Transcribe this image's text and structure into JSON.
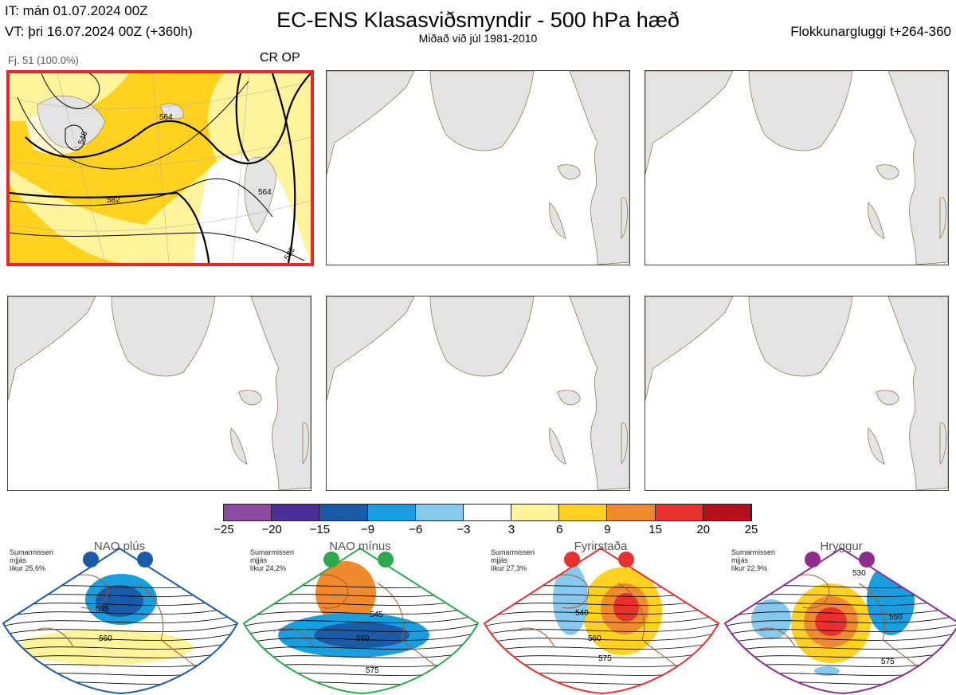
{
  "header": {
    "init_time": "IT: mán 01.07.2024 00Z",
    "valid_time": "VT: þri 16.07.2024 00Z  (+360h)",
    "title": "EC-ENS Klasasviðsmyndir - 500 hPa hæð",
    "subtitle": "Miðað við júl 1981-2010",
    "window": "Flokkunargluggi t+264-360"
  },
  "panel1": {
    "cluster": "Fj. 51 (100.0%)",
    "crop": "CR OP",
    "contour_labels": [
      "546",
      "564",
      "564",
      "582",
      "582"
    ]
  },
  "colorbar": {
    "colors": [
      "#8b4aa0",
      "#4b2e96",
      "#1a5ba8",
      "#1b9ee0",
      "#87c8ef",
      "#ffffff",
      "#fff39c",
      "#ffd21f",
      "#f08a2e",
      "#e8302d",
      "#b3111b"
    ],
    "labels": [
      "−25",
      "−20",
      "−15",
      "−9",
      "−6",
      "−3",
      "3",
      "6",
      "9",
      "15",
      "20",
      "25"
    ]
  },
  "regimes": [
    {
      "name": "NAO plús",
      "season": "Sumarmisseri",
      "spread": "mjjás",
      "prob": "líkur 25,6%",
      "color": "#1a5ba8",
      "labels": [
        "535",
        "560"
      ]
    },
    {
      "name": "NAO mínus",
      "season": "Sumarmisseri",
      "spread": "mjjás",
      "prob": "líkur 24,2%",
      "color": "#2aaa4a",
      "labels": [
        "545",
        "560",
        "575"
      ]
    },
    {
      "name": "Fyrirstaða",
      "season": "Sumarmisseri",
      "spread": "mjjás",
      "prob": "líkur 27,3%",
      "color": "#e8302d",
      "labels": [
        "540",
        "560",
        "575"
      ]
    },
    {
      "name": "Hryggur",
      "season": "Sumarmisseri",
      "spread": "mjjás",
      "prob": "líkur 22,9%",
      "color": "#8e2d8e",
      "labels": [
        "530",
        "550",
        "575"
      ]
    }
  ]
}
